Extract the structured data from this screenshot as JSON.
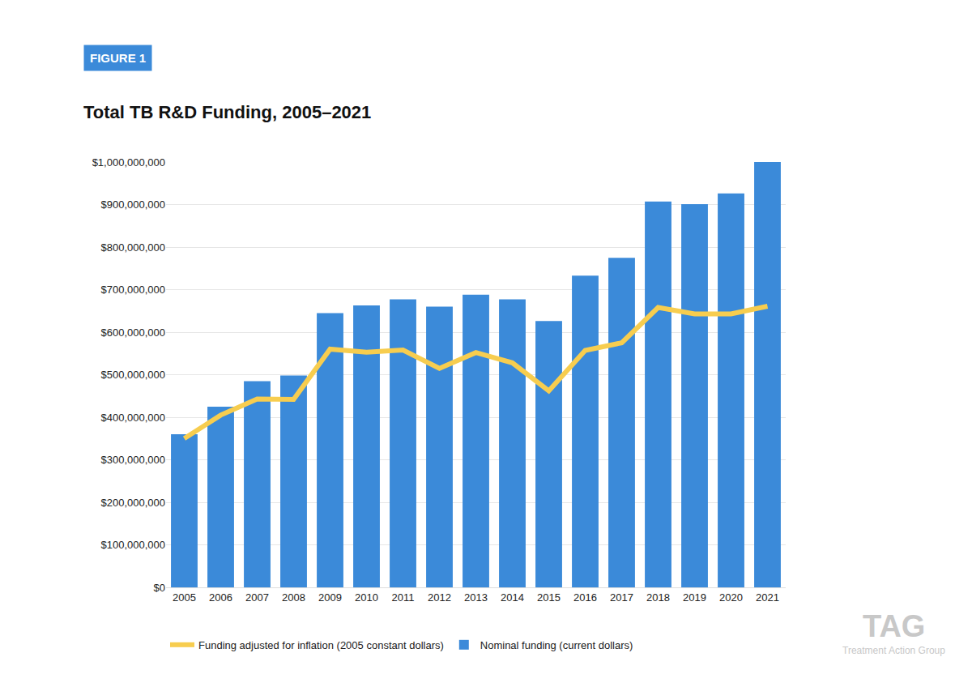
{
  "chart_data": {
    "type": "bar",
    "figure_label": "FIGURE 1",
    "title": "Total TB R&D Funding, 2005–2021",
    "categories": [
      "2005",
      "2006",
      "2007",
      "2008",
      "2009",
      "2010",
      "2011",
      "2012",
      "2013",
      "2014",
      "2015",
      "2016",
      "2017",
      "2018",
      "2019",
      "2020",
      "2021"
    ],
    "series": [
      {
        "name": "Funding adjusted for inflation (2005 constant dollars)",
        "type": "line",
        "color": "#f7cd4f",
        "values": [
          350000000,
          405000000,
          443000000,
          442000000,
          560000000,
          553000000,
          558000000,
          515000000,
          552000000,
          528000000,
          462000000,
          557000000,
          575000000,
          658000000,
          643000000,
          643000000,
          661000000
        ]
      },
      {
        "name": "Nominal funding (current dollars)",
        "type": "bar",
        "color": "#3b8ad9",
        "values": [
          360000000,
          425000000,
          485000000,
          498000000,
          645000000,
          663000000,
          677000000,
          660000000,
          688000000,
          677000000,
          626000000,
          733000000,
          775000000,
          907000000,
          901000000,
          926000000,
          1000000000
        ]
      }
    ],
    "ylim": [
      0,
      1000000000
    ],
    "yticks": [
      {
        "value": 0,
        "label": "$0"
      },
      {
        "value": 100000000,
        "label": "$100,000,000"
      },
      {
        "value": 200000000,
        "label": "$200,000,000"
      },
      {
        "value": 300000000,
        "label": "$300,000,000"
      },
      {
        "value": 400000000,
        "label": "$400,000,000"
      },
      {
        "value": 500000000,
        "label": "$500,000,000"
      },
      {
        "value": 600000000,
        "label": "$600,000,000"
      },
      {
        "value": 700000000,
        "label": "$700,000,000"
      },
      {
        "value": 800000000,
        "label": "$800,000,000"
      },
      {
        "value": 900000000,
        "label": "$900,000,000"
      },
      {
        "value": 1000000000,
        "label": "$1,000,000,000"
      }
    ],
    "grid": true,
    "legend": "bottom",
    "source_logo": [
      "TAG",
      "Treatment Action Group"
    ]
  }
}
